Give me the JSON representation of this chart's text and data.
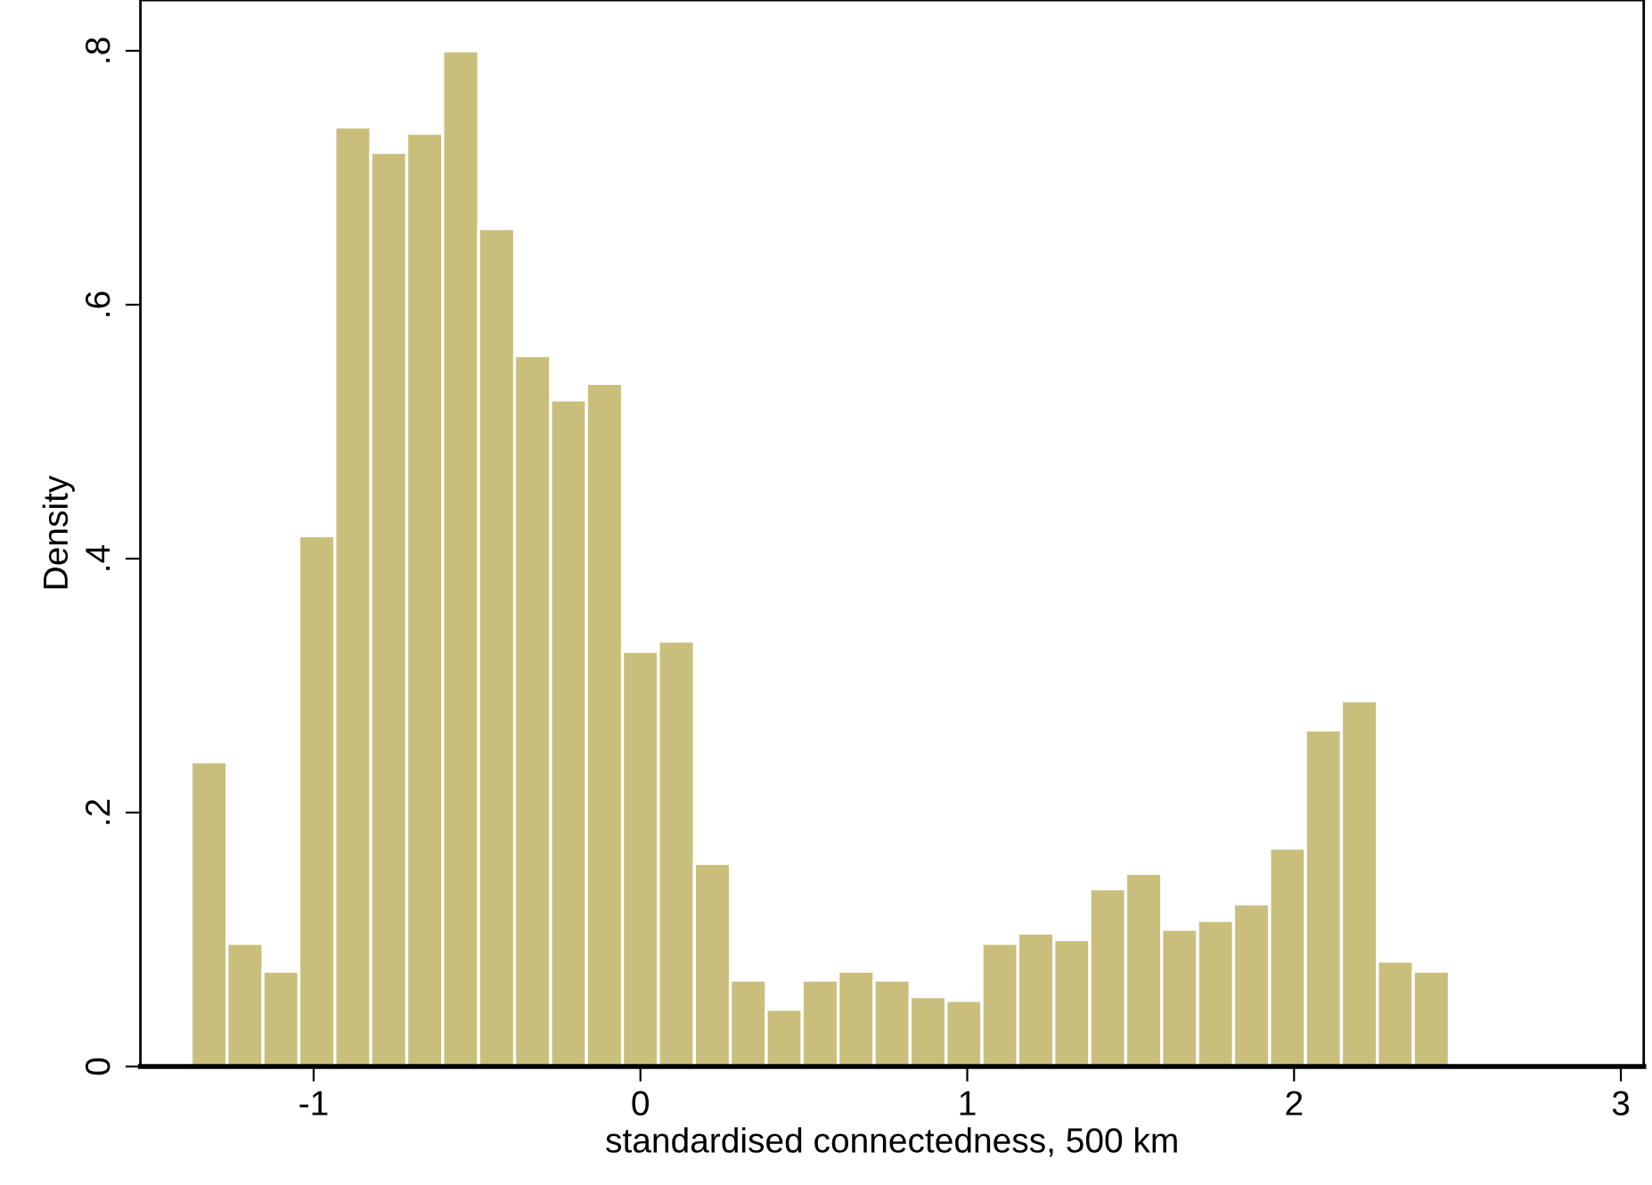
{
  "chart_data": {
    "type": "histogram",
    "xlabel": "standardised connectedness, 500 km",
    "ylabel": "Density",
    "bins": [
      -1.375,
      -1.265,
      -1.155,
      -1.045,
      -0.935,
      -0.825,
      -0.715,
      -0.605,
      -0.495,
      -0.385,
      -0.275,
      -0.165,
      -0.055,
      0.055,
      0.165,
      0.275,
      0.385,
      0.495,
      0.605,
      0.715,
      0.825,
      0.935,
      1.045,
      1.155,
      1.265,
      1.375,
      1.485,
      1.595,
      1.705,
      1.815,
      1.925,
      2.035,
      2.145,
      2.255,
      2.365,
      2.475
    ],
    "values": [
      0.24,
      0.097,
      0.075,
      0.418,
      0.74,
      0.72,
      0.735,
      0.8,
      0.66,
      0.56,
      0.525,
      0.538,
      0.327,
      0.335,
      0.16,
      0.068,
      0.045,
      0.068,
      0.075,
      0.068,
      0.055,
      0.052,
      0.097,
      0.105,
      0.1,
      0.14,
      0.152,
      0.108,
      0.115,
      0.128,
      0.172,
      0.265,
      0.288,
      0.083,
      0.075
    ],
    "color": "#c9be7c",
    "xlim": [
      -1.53,
      3.07
    ],
    "ylim": [
      0,
      0.84
    ],
    "xticks": [
      -1,
      0,
      1,
      2,
      3
    ],
    "yticks": [
      {
        "value": 0,
        "label": "0"
      },
      {
        "value": 0.2,
        "label": ".2"
      },
      {
        "value": 0.4,
        "label": ".4"
      },
      {
        "value": 0.6,
        "label": ".6"
      },
      {
        "value": 0.8,
        "label": ".8"
      }
    ],
    "grid": false
  }
}
